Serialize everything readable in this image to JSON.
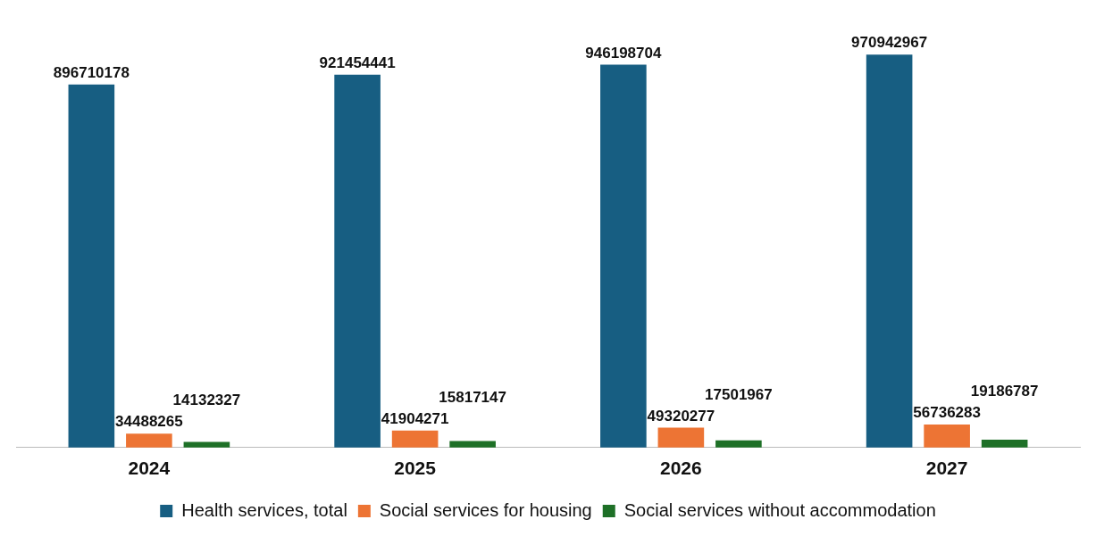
{
  "chart_data": {
    "type": "bar",
    "categories": [
      "2024",
      "2025",
      "2026",
      "2027"
    ],
    "series": [
      {
        "name": "Health services, total",
        "color": "#175e82",
        "values": [
          896710178,
          921454441,
          946198704,
          970942967
        ]
      },
      {
        "name": "Social services for housing",
        "color": "#ed7434",
        "values": [
          34488265,
          41904271,
          49320277,
          56736283
        ]
      },
      {
        "name": "Social services without accommodation",
        "color": "#1e7027",
        "values": [
          14132327,
          15817147,
          17501967,
          19186787
        ]
      }
    ],
    "data_labels": true,
    "legend": "bottom",
    "grid": false
  }
}
